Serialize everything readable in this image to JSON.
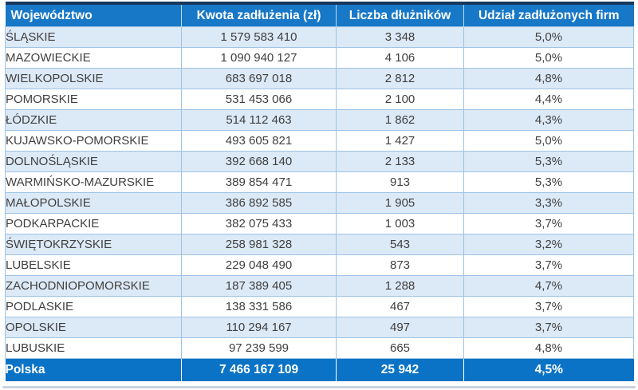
{
  "table": {
    "columns": [
      "Województwo",
      "Kwota zadłużenia (zł)",
      "Liczba dłużników",
      "Udział zadłużonych firm"
    ],
    "col_keys": [
      "wojewodztwo",
      "kwota-zadluzenia",
      "liczba-dluznikow",
      "udzial-zadluzonych-firm"
    ],
    "rows": [
      [
        "ŚLĄSKIE",
        "1 579 583 410",
        "3 348",
        "5,0%"
      ],
      [
        "MAZOWIECKIE",
        "1 090 940 127",
        "4 106",
        "5,0%"
      ],
      [
        "WIELKOPOLSKIE",
        "683 697 018",
        "2 812",
        "4,8%"
      ],
      [
        "POMORSKIE",
        "531 453 066",
        "2 100",
        "4,4%"
      ],
      [
        "ŁÓDZKIE",
        "514 112 463",
        "1 862",
        "4,3%"
      ],
      [
        "KUJAWSKO-POMORSKIE",
        "493 605 821",
        "1 427",
        "5,0%"
      ],
      [
        "DOLNOŚLĄSKIE",
        "392 668 140",
        "2 133",
        "5,3%"
      ],
      [
        "WARMIŃSKO-MAZURSKIE",
        "389 854 471",
        "913",
        "5,3%"
      ],
      [
        "MAŁOPOLSKIE",
        "386 892 585",
        "1 905",
        "3,3%"
      ],
      [
        "PODKARPACKIE",
        "382 075 433",
        "1 003",
        "3,7%"
      ],
      [
        "ŚWIĘTOKRZYSKIE",
        "258 981 328",
        "543",
        "3,2%"
      ],
      [
        "LUBELSKIE",
        "229 048 490",
        "873",
        "3,7%"
      ],
      [
        "ZACHODNIOPOMORSKIE",
        "187 389 405",
        "1 288",
        "4,7%"
      ],
      [
        "PODLASKIE",
        "138 331 586",
        "467",
        "3,7%"
      ],
      [
        "OPOLSKIE",
        "110 294 167",
        "497",
        "3,7%"
      ],
      [
        "LUBUSKIE",
        "97 239 599",
        "665",
        "4,8%"
      ]
    ],
    "total": [
      "Polska",
      "7 466 167 109",
      "25 942",
      "4,5%"
    ]
  },
  "chart_data": {
    "type": "table",
    "title": "",
    "columns": [
      "Województwo",
      "Kwota zadłużenia (zł)",
      "Liczba dłużników",
      "Udział zadłużonych firm"
    ],
    "rows": [
      {
        "wojewodztwo": "ŚLĄSKIE",
        "kwota_zadluzenia_zl": 1579583410,
        "liczba_dluznikow": 3348,
        "udzial_zadluzonych_firm_pct": 5.0
      },
      {
        "wojewodztwo": "MAZOWIECKIE",
        "kwota_zadluzenia_zl": 1090940127,
        "liczba_dluznikow": 4106,
        "udzial_zadluzonych_firm_pct": 5.0
      },
      {
        "wojewodztwo": "WIELKOPOLSKIE",
        "kwota_zadluzenia_zl": 683697018,
        "liczba_dluznikow": 2812,
        "udzial_zadluzonych_firm_pct": 4.8
      },
      {
        "wojewodztwo": "POMORSKIE",
        "kwota_zadluzenia_zl": 531453066,
        "liczba_dluznikow": 2100,
        "udzial_zadluzonych_firm_pct": 4.4
      },
      {
        "wojewodztwo": "ŁÓDZKIE",
        "kwota_zadluzenia_zl": 514112463,
        "liczba_dluznikow": 1862,
        "udzial_zadluzonych_firm_pct": 4.3
      },
      {
        "wojewodztwo": "KUJAWSKO-POMORSKIE",
        "kwota_zadluzenia_zl": 493605821,
        "liczba_dluznikow": 1427,
        "udzial_zadluzonych_firm_pct": 5.0
      },
      {
        "wojewodztwo": "DOLNOŚLĄSKIE",
        "kwota_zadluzenia_zl": 392668140,
        "liczba_dluznikow": 2133,
        "udzial_zadluzonych_firm_pct": 5.3
      },
      {
        "wojewodztwo": "WARMIŃSKO-MAZURSKIE",
        "kwota_zadluzenia_zl": 389854471,
        "liczba_dluznikow": 913,
        "udzial_zadluzonych_firm_pct": 5.3
      },
      {
        "wojewodztwo": "MAŁOPOLSKIE",
        "kwota_zadluzenia_zl": 386892585,
        "liczba_dluznikow": 1905,
        "udzial_zadluzonych_firm_pct": 3.3
      },
      {
        "wojewodztwo": "PODKARPACKIE",
        "kwota_zadluzenia_zl": 382075433,
        "liczba_dluznikow": 1003,
        "udzial_zadluzonych_firm_pct": 3.7
      },
      {
        "wojewodztwo": "ŚWIĘTOKRZYSKIE",
        "kwota_zadluzenia_zl": 258981328,
        "liczba_dluznikow": 543,
        "udzial_zadluzonych_firm_pct": 3.2
      },
      {
        "wojewodztwo": "LUBELSKIE",
        "kwota_zadluzenia_zl": 229048490,
        "liczba_dluznikow": 873,
        "udzial_zadluzonych_firm_pct": 3.7
      },
      {
        "wojewodztwo": "ZACHODNIOPOMORSKIE",
        "kwota_zadluzenia_zl": 187389405,
        "liczba_dluznikow": 1288,
        "udzial_zadluzonych_firm_pct": 4.7
      },
      {
        "wojewodztwo": "PODLASKIE",
        "kwota_zadluzenia_zl": 138331586,
        "liczba_dluznikow": 467,
        "udzial_zadluzonych_firm_pct": 3.7
      },
      {
        "wojewodztwo": "OPOLSKIE",
        "kwota_zadluzenia_zl": 110294167,
        "liczba_dluznikow": 497,
        "udzial_zadluzonych_firm_pct": 3.7
      },
      {
        "wojewodztwo": "LUBUSKIE",
        "kwota_zadluzenia_zl": 97239599,
        "liczba_dluznikow": 665,
        "udzial_zadluzonych_firm_pct": 4.8
      }
    ],
    "total": {
      "wojewodztwo": "Polska",
      "kwota_zadluzenia_zl": 7466167109,
      "liczba_dluznikow": 25942,
      "udzial_zadluzonych_firm_pct": 4.5
    }
  },
  "colors": {
    "header_bg": "#1878C8",
    "total_row_bg": "#0A73C6",
    "top_border": "#17375E",
    "row_alt_bg": "#DCE9F6",
    "row_border": "#9DC3E6",
    "body_text": "#3F3F3F",
    "header_text": "#FFFFFF"
  }
}
